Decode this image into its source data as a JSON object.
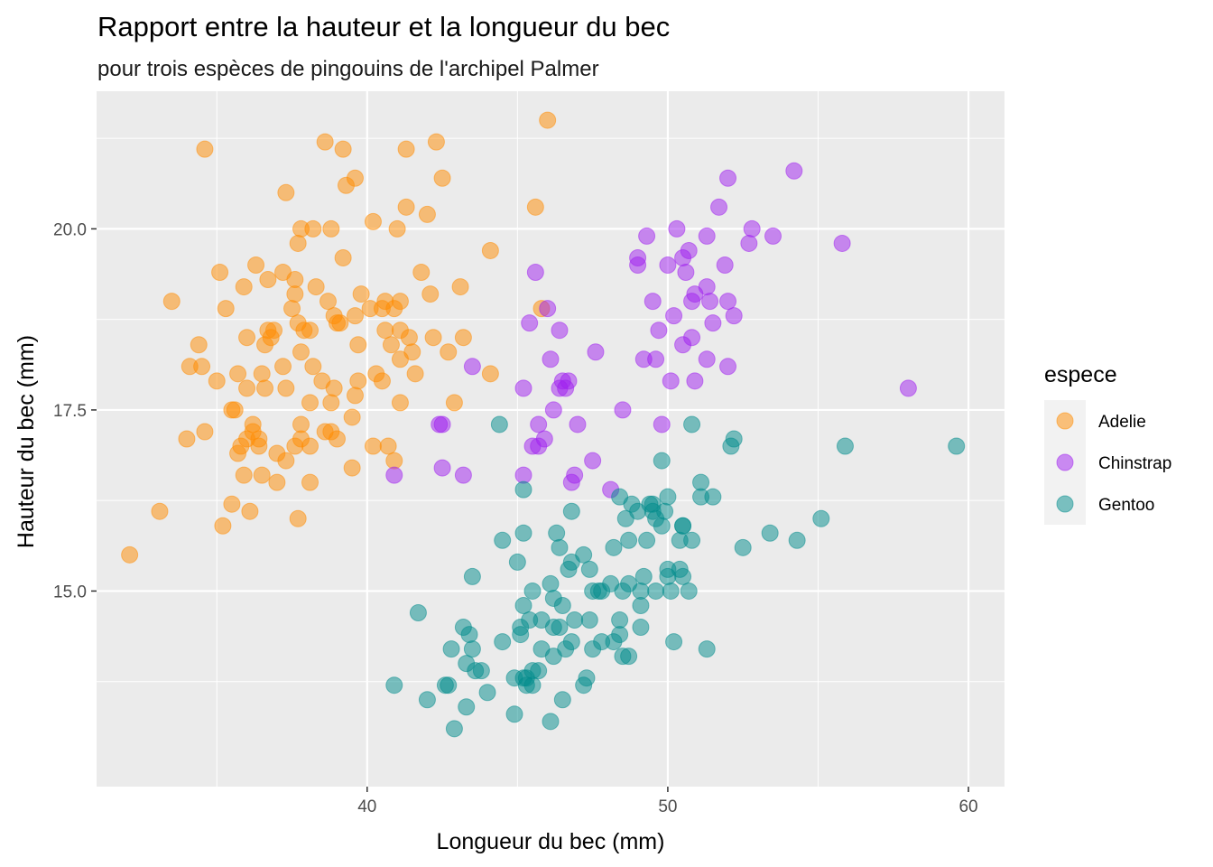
{
  "chart_data": {
    "type": "scatter",
    "title": "Rapport entre la hauteur et la longueur du bec",
    "subtitle": "pour trois espèces de pingouins de l'archipel Palmer",
    "xlabel": "Longueur du bec (mm)",
    "ylabel": "Hauteur du bec (mm)",
    "xlim": [
      31.0,
      61.2
    ],
    "ylim": [
      12.3,
      21.9
    ],
    "x_ticks": [
      40,
      50,
      60
    ],
    "x_tick_labels": [
      "40",
      "50",
      "60"
    ],
    "y_ticks": [
      15.0,
      17.5,
      20.0
    ],
    "y_tick_labels": [
      "15.0",
      "17.5",
      "20.0"
    ],
    "grid": true,
    "legend_title": "espece",
    "legend_position": "right",
    "series": [
      {
        "name": "Adelie",
        "color": "#FF8C00",
        "points": [
          [
            32.1,
            15.5
          ],
          [
            33.1,
            16.1
          ],
          [
            33.5,
            19.0
          ],
          [
            34.0,
            17.1
          ],
          [
            34.1,
            18.1
          ],
          [
            34.4,
            18.4
          ],
          [
            34.5,
            18.1
          ],
          [
            34.6,
            21.1
          ],
          [
            34.6,
            17.2
          ],
          [
            35.0,
            17.9
          ],
          [
            35.1,
            19.4
          ],
          [
            35.2,
            15.9
          ],
          [
            35.3,
            18.9
          ],
          [
            35.5,
            16.2
          ],
          [
            35.5,
            17.5
          ],
          [
            35.6,
            17.5
          ],
          [
            35.7,
            16.9
          ],
          [
            35.7,
            18.0
          ],
          [
            35.8,
            17.0
          ],
          [
            35.9,
            16.6
          ],
          [
            35.9,
            19.2
          ],
          [
            36.0,
            17.8
          ],
          [
            36.0,
            17.1
          ],
          [
            36.0,
            18.5
          ],
          [
            36.1,
            16.1
          ],
          [
            36.2,
            17.3
          ],
          [
            36.2,
            17.2
          ],
          [
            36.3,
            19.5
          ],
          [
            36.4,
            17.0
          ],
          [
            36.4,
            17.1
          ],
          [
            36.5,
            18.0
          ],
          [
            36.5,
            16.6
          ],
          [
            36.6,
            17.8
          ],
          [
            36.6,
            18.4
          ],
          [
            36.7,
            18.6
          ],
          [
            36.7,
            19.3
          ],
          [
            36.8,
            18.5
          ],
          [
            36.9,
            18.6
          ],
          [
            37.0,
            16.5
          ],
          [
            37.0,
            16.9
          ],
          [
            37.2,
            18.1
          ],
          [
            37.2,
            19.4
          ],
          [
            37.3,
            16.8
          ],
          [
            37.3,
            17.8
          ],
          [
            37.3,
            20.5
          ],
          [
            37.5,
            18.9
          ],
          [
            37.6,
            17.0
          ],
          [
            37.6,
            19.3
          ],
          [
            37.6,
            19.1
          ],
          [
            37.7,
            18.7
          ],
          [
            37.7,
            16.0
          ],
          [
            37.7,
            19.8
          ],
          [
            37.8,
            17.1
          ],
          [
            37.8,
            18.3
          ],
          [
            37.8,
            20.0
          ],
          [
            37.8,
            17.3
          ],
          [
            37.9,
            18.6
          ],
          [
            38.1,
            18.6
          ],
          [
            38.1,
            17.0
          ],
          [
            38.1,
            16.5
          ],
          [
            38.1,
            17.6
          ],
          [
            38.2,
            18.1
          ],
          [
            38.2,
            20.0
          ],
          [
            38.3,
            19.2
          ],
          [
            38.5,
            17.9
          ],
          [
            38.6,
            21.2
          ],
          [
            38.6,
            17.2
          ],
          [
            38.7,
            19.0
          ],
          [
            38.8,
            17.2
          ],
          [
            38.8,
            20.0
          ],
          [
            38.8,
            17.6
          ],
          [
            38.9,
            18.8
          ],
          [
            38.9,
            17.8
          ],
          [
            39.0,
            17.1
          ],
          [
            39.0,
            18.7
          ],
          [
            39.1,
            18.7
          ],
          [
            39.2,
            19.6
          ],
          [
            39.2,
            21.1
          ],
          [
            39.3,
            20.6
          ],
          [
            39.5,
            16.7
          ],
          [
            39.5,
            17.4
          ],
          [
            39.6,
            17.7
          ],
          [
            39.6,
            18.8
          ],
          [
            39.6,
            20.7
          ],
          [
            39.7,
            18.4
          ],
          [
            39.7,
            17.9
          ],
          [
            39.8,
            19.1
          ],
          [
            40.1,
            18.9
          ],
          [
            40.2,
            17.0
          ],
          [
            40.2,
            20.1
          ],
          [
            40.3,
            18.0
          ],
          [
            40.5,
            18.9
          ],
          [
            40.5,
            17.9
          ],
          [
            40.6,
            18.6
          ],
          [
            40.6,
            19.0
          ],
          [
            40.7,
            17.0
          ],
          [
            40.8,
            18.4
          ],
          [
            40.9,
            16.8
          ],
          [
            40.9,
            18.9
          ],
          [
            41.0,
            20.0
          ],
          [
            41.1,
            18.2
          ],
          [
            41.1,
            19.0
          ],
          [
            41.1,
            17.6
          ],
          [
            41.1,
            18.6
          ],
          [
            41.3,
            21.1
          ],
          [
            41.3,
            20.3
          ],
          [
            41.4,
            18.5
          ],
          [
            41.5,
            18.3
          ],
          [
            41.6,
            18.0
          ],
          [
            41.8,
            19.4
          ],
          [
            42.0,
            20.2
          ],
          [
            42.1,
            19.1
          ],
          [
            42.2,
            18.5
          ],
          [
            42.3,
            21.2
          ],
          [
            42.5,
            20.7
          ],
          [
            42.7,
            18.3
          ],
          [
            42.9,
            17.6
          ],
          [
            43.1,
            19.2
          ],
          [
            43.2,
            18.5
          ],
          [
            44.1,
            19.7
          ],
          [
            44.1,
            18.0
          ],
          [
            45.6,
            20.3
          ],
          [
            45.8,
            18.9
          ],
          [
            46.0,
            21.5
          ]
        ]
      },
      {
        "name": "Chinstrap",
        "color": "#A020F0",
        "points": [
          [
            40.9,
            16.6
          ],
          [
            42.4,
            17.3
          ],
          [
            42.5,
            16.7
          ],
          [
            42.5,
            17.3
          ],
          [
            43.2,
            16.6
          ],
          [
            43.5,
            18.1
          ],
          [
            45.2,
            16.6
          ],
          [
            45.2,
            17.8
          ],
          [
            45.4,
            18.7
          ],
          [
            45.5,
            17.0
          ],
          [
            45.6,
            19.4
          ],
          [
            45.7,
            17.3
          ],
          [
            45.7,
            17.0
          ],
          [
            45.9,
            17.1
          ],
          [
            46.0,
            18.9
          ],
          [
            46.1,
            18.2
          ],
          [
            46.2,
            17.5
          ],
          [
            46.4,
            18.6
          ],
          [
            46.4,
            17.8
          ],
          [
            46.5,
            17.9
          ],
          [
            46.6,
            17.8
          ],
          [
            46.7,
            17.9
          ],
          [
            46.8,
            16.5
          ],
          [
            46.9,
            16.6
          ],
          [
            47.0,
            17.3
          ],
          [
            47.5,
            16.8
          ],
          [
            47.6,
            18.3
          ],
          [
            48.1,
            16.4
          ],
          [
            48.5,
            17.5
          ],
          [
            49.0,
            19.5
          ],
          [
            49.0,
            19.6
          ],
          [
            49.2,
            18.2
          ],
          [
            49.3,
            19.9
          ],
          [
            49.5,
            19.0
          ],
          [
            49.6,
            18.2
          ],
          [
            49.7,
            18.6
          ],
          [
            49.8,
            17.3
          ],
          [
            50.0,
            19.5
          ],
          [
            50.1,
            17.9
          ],
          [
            50.2,
            18.8
          ],
          [
            50.3,
            20.0
          ],
          [
            50.5,
            18.4
          ],
          [
            50.5,
            19.6
          ],
          [
            50.6,
            19.4
          ],
          [
            50.7,
            19.7
          ],
          [
            50.8,
            18.5
          ],
          [
            50.8,
            19.0
          ],
          [
            50.9,
            17.9
          ],
          [
            50.9,
            19.1
          ],
          [
            51.3,
            18.2
          ],
          [
            51.3,
            19.2
          ],
          [
            51.3,
            19.9
          ],
          [
            51.4,
            19.0
          ],
          [
            51.5,
            18.7
          ],
          [
            51.7,
            20.3
          ],
          [
            51.9,
            19.5
          ],
          [
            52.0,
            18.1
          ],
          [
            52.0,
            19.0
          ],
          [
            52.0,
            20.7
          ],
          [
            52.2,
            18.8
          ],
          [
            52.7,
            19.8
          ],
          [
            52.8,
            20.0
          ],
          [
            53.5,
            19.9
          ],
          [
            54.2,
            20.8
          ],
          [
            55.8,
            19.8
          ],
          [
            58.0,
            17.8
          ]
        ]
      },
      {
        "name": "Gentoo",
        "color": "#008B8B",
        "points": [
          [
            40.9,
            13.7
          ],
          [
            41.7,
            14.7
          ],
          [
            42.0,
            13.5
          ],
          [
            42.6,
            13.7
          ],
          [
            42.7,
            13.7
          ],
          [
            42.8,
            14.2
          ],
          [
            42.9,
            13.1
          ],
          [
            43.2,
            14.5
          ],
          [
            43.3,
            14.0
          ],
          [
            43.3,
            13.4
          ],
          [
            43.4,
            14.4
          ],
          [
            43.5,
            14.2
          ],
          [
            43.5,
            15.2
          ],
          [
            43.6,
            13.9
          ],
          [
            43.8,
            13.9
          ],
          [
            44.0,
            13.6
          ],
          [
            44.4,
            17.3
          ],
          [
            44.5,
            14.3
          ],
          [
            44.5,
            15.7
          ],
          [
            44.9,
            13.8
          ],
          [
            44.9,
            13.3
          ],
          [
            45.0,
            15.4
          ],
          [
            45.1,
            14.5
          ],
          [
            45.1,
            14.4
          ],
          [
            45.2,
            15.8
          ],
          [
            45.2,
            13.8
          ],
          [
            45.2,
            16.4
          ],
          [
            45.2,
            14.8
          ],
          [
            45.3,
            13.7
          ],
          [
            45.3,
            13.8
          ],
          [
            45.4,
            14.6
          ],
          [
            45.5,
            13.7
          ],
          [
            45.5,
            13.9
          ],
          [
            45.5,
            15.0
          ],
          [
            45.7,
            13.9
          ],
          [
            45.8,
            14.6
          ],
          [
            45.8,
            14.2
          ],
          [
            46.1,
            15.1
          ],
          [
            46.1,
            13.2
          ],
          [
            46.2,
            14.5
          ],
          [
            46.2,
            14.9
          ],
          [
            46.2,
            14.1
          ],
          [
            46.3,
            15.8
          ],
          [
            46.4,
            15.6
          ],
          [
            46.4,
            14.5
          ],
          [
            46.5,
            14.8
          ],
          [
            46.5,
            13.5
          ],
          [
            46.6,
            14.2
          ],
          [
            46.7,
            15.3
          ],
          [
            46.8,
            14.3
          ],
          [
            46.8,
            15.4
          ],
          [
            46.8,
            16.1
          ],
          [
            46.9,
            14.6
          ],
          [
            47.2,
            13.7
          ],
          [
            47.2,
            15.5
          ],
          [
            47.3,
            13.8
          ],
          [
            47.4,
            14.6
          ],
          [
            47.4,
            15.3
          ],
          [
            47.5,
            14.2
          ],
          [
            47.5,
            15.0
          ],
          [
            47.7,
            15.0
          ],
          [
            47.8,
            15.0
          ],
          [
            47.8,
            14.3
          ],
          [
            48.1,
            15.1
          ],
          [
            48.2,
            14.3
          ],
          [
            48.2,
            15.6
          ],
          [
            48.4,
            14.6
          ],
          [
            48.4,
            14.4
          ],
          [
            48.4,
            16.3
          ],
          [
            48.5,
            14.1
          ],
          [
            48.5,
            15.0
          ],
          [
            48.6,
            16.0
          ],
          [
            48.7,
            14.1
          ],
          [
            48.7,
            15.1
          ],
          [
            48.7,
            15.7
          ],
          [
            48.8,
            16.2
          ],
          [
            49.0,
            16.1
          ],
          [
            49.1,
            14.5
          ],
          [
            49.1,
            14.8
          ],
          [
            49.1,
            15.0
          ],
          [
            49.2,
            15.2
          ],
          [
            49.3,
            15.7
          ],
          [
            49.4,
            16.2
          ],
          [
            49.5,
            16.1
          ],
          [
            49.5,
            16.2
          ],
          [
            49.6,
            15.0
          ],
          [
            49.6,
            16.0
          ],
          [
            49.8,
            15.9
          ],
          [
            49.8,
            16.8
          ],
          [
            49.9,
            16.1
          ],
          [
            50.0,
            15.3
          ],
          [
            50.0,
            15.2
          ],
          [
            50.0,
            16.3
          ],
          [
            50.1,
            15.0
          ],
          [
            50.2,
            14.3
          ],
          [
            50.4,
            15.3
          ],
          [
            50.4,
            15.7
          ],
          [
            50.5,
            15.9
          ],
          [
            50.5,
            15.2
          ],
          [
            50.5,
            15.9
          ],
          [
            50.7,
            15.0
          ],
          [
            50.8,
            15.7
          ],
          [
            50.8,
            17.3
          ],
          [
            51.1,
            16.3
          ],
          [
            51.1,
            16.5
          ],
          [
            51.3,
            14.2
          ],
          [
            51.5,
            16.3
          ],
          [
            52.1,
            17.0
          ],
          [
            52.2,
            17.1
          ],
          [
            52.5,
            15.6
          ],
          [
            53.4,
            15.8
          ],
          [
            54.3,
            15.7
          ],
          [
            55.1,
            16.0
          ],
          [
            55.9,
            17.0
          ],
          [
            59.6,
            17.0
          ]
        ]
      }
    ]
  }
}
